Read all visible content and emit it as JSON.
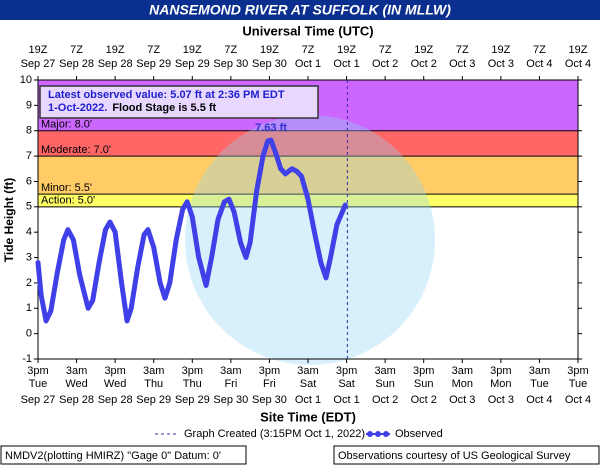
{
  "chart_data": {
    "type": "line",
    "title": "NANSEMOND RIVER AT SUFFOLK (IN MLLW)",
    "top_axis_label": "Universal Time (UTC)",
    "xlabel": "Site Time (EDT)",
    "ylabel": "Tide Height (ft)",
    "xlim": [
      0,
      168
    ],
    "ylim": [
      -1,
      10
    ],
    "yticks": [
      -1,
      0,
      1,
      2,
      3,
      4,
      5,
      6,
      7,
      8,
      9,
      10
    ],
    "xticks": [
      {
        "value": 0,
        "label": "3pm",
        "day": "Tue",
        "date": "Sep 27",
        "utc": "19Z",
        "utc_date": "Sep 27"
      },
      {
        "value": 12,
        "label": "3am",
        "day": "Wed",
        "date": "Sep 28",
        "utc": "7Z",
        "utc_date": "Sep 28"
      },
      {
        "value": 24,
        "label": "3pm",
        "day": "Wed",
        "date": "Sep 28",
        "utc": "19Z",
        "utc_date": "Sep 28"
      },
      {
        "value": 36,
        "label": "3am",
        "day": "Thu",
        "date": "Sep 29",
        "utc": "7Z",
        "utc_date": "Sep 29"
      },
      {
        "value": 48,
        "label": "3pm",
        "day": "Thu",
        "date": "Sep 29",
        "utc": "19Z",
        "utc_date": "Sep 29"
      },
      {
        "value": 60,
        "label": "3am",
        "day": "Fri",
        "date": "Sep 30",
        "utc": "7Z",
        "utc_date": "Sep 30"
      },
      {
        "value": 72,
        "label": "3pm",
        "day": "Fri",
        "date": "Sep 30",
        "utc": "19Z",
        "utc_date": "Sep 30"
      },
      {
        "value": 84,
        "label": "3am",
        "day": "Sat",
        "date": "Oct 1",
        "utc": "7Z",
        "utc_date": "Oct 1"
      },
      {
        "value": 96,
        "label": "3pm",
        "day": "Sat",
        "date": "Oct 1",
        "utc": "19Z",
        "utc_date": "Oct 1"
      },
      {
        "value": 108,
        "label": "3am",
        "day": "Sun",
        "date": "Oct 2",
        "utc": "7Z",
        "utc_date": "Oct 2"
      },
      {
        "value": 120,
        "label": "3pm",
        "day": "Sun",
        "date": "Oct 2",
        "utc": "19Z",
        "utc_date": "Oct 2"
      },
      {
        "value": 132,
        "label": "3am",
        "day": "Mon",
        "date": "Oct 3",
        "utc": "7Z",
        "utc_date": "Oct 3"
      },
      {
        "value": 144,
        "label": "3pm",
        "day": "Mon",
        "date": "Oct 3",
        "utc": "19Z",
        "utc_date": "Oct 3"
      },
      {
        "value": 156,
        "label": "3am",
        "day": "Tue",
        "date": "Oct 4",
        "utc": "7Z",
        "utc_date": "Oct 4"
      },
      {
        "value": 168,
        "label": "3pm",
        "day": "Tue",
        "date": "Oct 4",
        "utc": "19Z",
        "utc_date": "Oct 4"
      }
    ],
    "flood_levels": [
      {
        "label": "Action: 5.0'",
        "value": 5.0,
        "color": "#ffff66"
      },
      {
        "label": "Minor: 5.5'",
        "value": 5.5,
        "color": "#ffcc66"
      },
      {
        "label": "Moderate: 7.0'",
        "value": 7.0,
        "color": "#ff6666"
      },
      {
        "label": "Major: 8.0'",
        "value": 8.0,
        "color": "#cc66ff"
      }
    ],
    "info_box": [
      "Latest observed value: 5.07 ft at 2:36 PM EDT",
      "1-Oct-2022.",
      "Flood Stage is 5.5 ft"
    ],
    "created": {
      "label": "Graph Created (3:15PM Oct 1, 2022)",
      "x": 96.25
    },
    "series": [
      {
        "name": "Observed",
        "color": "#4040e8",
        "x": [
          0,
          1,
          2.5,
          4,
          6,
          8,
          9.3,
          11,
          13,
          15.6,
          17,
          19,
          21,
          22.4,
          24,
          26,
          27.7,
          29,
          31,
          33,
          34.2,
          36,
          38,
          39.5,
          41,
          43,
          45,
          46.4,
          48,
          50,
          52.3,
          54,
          56,
          58,
          59.4,
          61,
          63,
          64.7,
          66,
          68,
          70,
          71.5,
          72.5,
          74,
          75.5,
          77,
          79,
          80.5,
          82,
          84,
          86,
          88,
          89.6,
          91,
          93,
          95.6
        ],
        "values": [
          2.8,
          1.5,
          0.5,
          0.9,
          2.4,
          3.7,
          4.1,
          3.7,
          2.3,
          1.0,
          1.3,
          2.8,
          4.1,
          4.4,
          4.0,
          2.0,
          0.5,
          1.0,
          2.6,
          3.9,
          4.1,
          3.4,
          2.0,
          1.4,
          2.0,
          3.7,
          4.9,
          5.2,
          4.6,
          3.0,
          1.9,
          3.0,
          4.5,
          5.2,
          5.3,
          4.8,
          3.6,
          3.0,
          3.6,
          5.6,
          7.0,
          7.6,
          7.63,
          7.1,
          6.5,
          6.3,
          6.5,
          6.4,
          6.2,
          5.3,
          4.0,
          2.8,
          2.2,
          3.0,
          4.3,
          5.07
        ]
      }
    ],
    "annotations": [
      {
        "text": "7.63 ft",
        "x": 72.5,
        "y": 7.63
      }
    ],
    "footer_left": "NMDV2(plotting HMIRZ) \"Gage 0\" Datum: 0'",
    "footer_right": "Observations courtesy of US Geological Survey"
  }
}
